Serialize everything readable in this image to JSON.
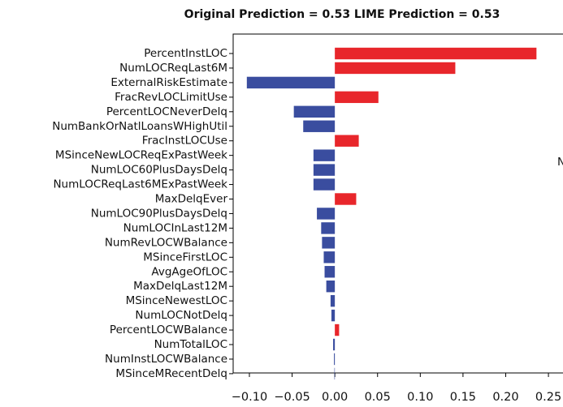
{
  "chart_data": {
    "type": "barh",
    "title": "Original Prediction = 0.53 LIME Prediction = 0.53",
    "categories": [
      "PercentInstLOC",
      "NumLOCReqLast6M",
      "ExternalRiskEstimate",
      "FracRevLOCLimitUse",
      "PercentLOCNeverDelq",
      "NumBankOrNatlLoansWHighUtil",
      "FracInstLOCUse",
      "MSinceNewLOCReqExPastWeek",
      "NumLOC60PlusDaysDelq",
      "NumLOCReqLast6MExPastWeek",
      "MaxDelqEver",
      "NumLOC90PlusDaysDelq",
      "NumLOCInLast12M",
      "NumRevLOCWBalance",
      "MSinceFirstLOC",
      "AvgAgeOfLOC",
      "MaxDelqLast12M",
      "MSinceNewestLOC",
      "NumLOCNotDelq",
      "PercentLOCWBalance",
      "NumTotalLOC",
      "NumInstLOCWBalance",
      "MSinceMRecentDelq"
    ],
    "values": [
      0.236,
      0.141,
      -0.103,
      0.051,
      -0.048,
      -0.037,
      0.028,
      -0.025,
      -0.025,
      -0.025,
      0.025,
      -0.021,
      -0.016,
      -0.015,
      -0.013,
      -0.012,
      -0.01,
      -0.005,
      -0.004,
      0.005,
      -0.002,
      -0.001,
      -0.0005
    ],
    "positive_color": "#e8262b",
    "negative_color": "#3a4d9f",
    "xlim": [
      -0.119,
      0.268
    ],
    "xticks": [
      {
        "value": -0.1,
        "label": "−0.10"
      },
      {
        "value": -0.05,
        "label": "−0.05"
      },
      {
        "value": 0,
        "label": "0.00"
      },
      {
        "value": 0.05,
        "label": "0.05"
      },
      {
        "value": 0.1,
        "label": "0.10"
      },
      {
        "value": 0.15,
        "label": "0.15"
      },
      {
        "value": 0.2,
        "label": "0.20"
      },
      {
        "value": 0.25,
        "label": "0.25"
      }
    ],
    "annotation": "N"
  }
}
